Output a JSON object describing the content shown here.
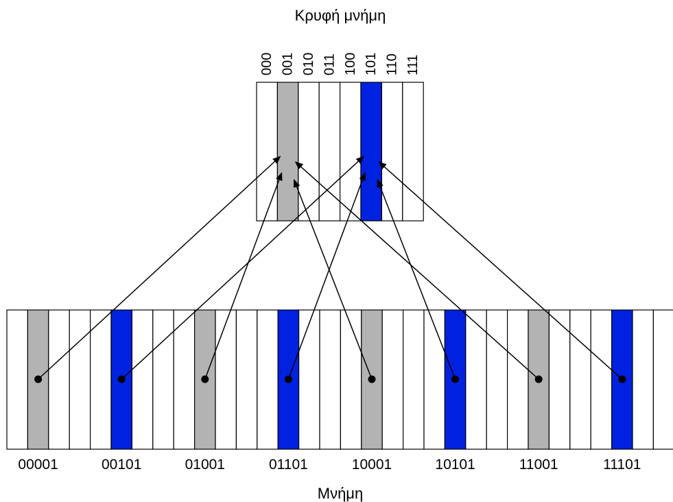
{
  "cache": {
    "title": "Κρυφή μνήμη",
    "slots": [
      {
        "label": "000",
        "color": "white"
      },
      {
        "label": "001",
        "color": "gray"
      },
      {
        "label": "010",
        "color": "white"
      },
      {
        "label": "011",
        "color": "white"
      },
      {
        "label": "100",
        "color": "white"
      },
      {
        "label": "101",
        "color": "blue"
      },
      {
        "label": "110",
        "color": "white"
      },
      {
        "label": "111",
        "color": "white"
      }
    ]
  },
  "memory": {
    "title": "Μνήμη",
    "block_count": 32,
    "highlighted": [
      {
        "index": 1,
        "color": "gray",
        "label": "00001",
        "target_slot": 1
      },
      {
        "index": 5,
        "color": "blue",
        "label": "00101",
        "target_slot": 5
      },
      {
        "index": 9,
        "color": "gray",
        "label": "01001",
        "target_slot": 1
      },
      {
        "index": 13,
        "color": "blue",
        "label": "01101",
        "target_slot": 5
      },
      {
        "index": 17,
        "color": "gray",
        "label": "10001",
        "target_slot": 1
      },
      {
        "index": 21,
        "color": "blue",
        "label": "10101",
        "target_slot": 5
      },
      {
        "index": 25,
        "color": "gray",
        "label": "11001",
        "target_slot": 1
      },
      {
        "index": 29,
        "color": "blue",
        "label": "11101",
        "target_slot": 5
      }
    ]
  },
  "colors": {
    "gray": "#b3b3b3",
    "blue": "#0022e0",
    "white": "#ffffff",
    "stroke": "#000000"
  }
}
